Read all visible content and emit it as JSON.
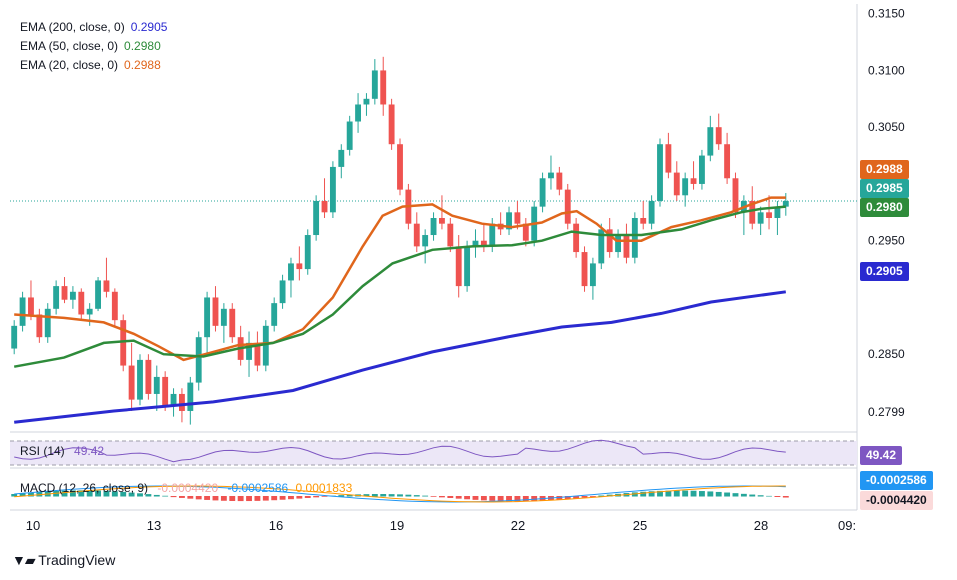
{
  "colors": {
    "ema200": "#2a2ad0",
    "ema50": "#2e8b3a",
    "ema20": "#e0661c",
    "up": "#26a69a",
    "down": "#ef5350",
    "rsi": "#7e57c2",
    "macd_line": "#2196f3",
    "signal_line": "#ff9800"
  },
  "legend": {
    "ema200": {
      "label": "EMA (200, close, 0)",
      "value": "0.2905"
    },
    "ema50": {
      "label": "EMA (50, close, 0)",
      "value": "0.2980"
    },
    "ema20": {
      "label": "EMA (20, close, 0)",
      "value": "0.2988"
    }
  },
  "price_pills": {
    "ema20": "0.2988",
    "last": "0.2985",
    "ema50": "0.2980",
    "ema200": "0.2905"
  },
  "rsi": {
    "label": "RSI (14)",
    "value": "49.42",
    "pill": "49.42"
  },
  "macd": {
    "label": "MACD (12, 26, close, 9)",
    "hist": "-0.0004420",
    "macd": "-0.0002586",
    "signal": "0.0001833",
    "pill_macd": "-0.0002586",
    "pill_hist": "-0.0004420"
  },
  "footer": {
    "brand": "TradingView"
  },
  "chart_data": {
    "type": "candlestick",
    "y_ticks": [
      "0.3150",
      "0.3100",
      "0.3050",
      "0.2950",
      "0.2850",
      "0.2799"
    ],
    "x_ticks": [
      "10",
      "13",
      "16",
      "19",
      "22",
      "25",
      "28",
      "09:"
    ],
    "ylim": [
      0.2785,
      0.3155
    ],
    "series": [
      {
        "name": "EMA (20, close, 0)",
        "points": [
          [
            0,
            0.2885
          ],
          [
            10,
            0.2882
          ],
          [
            18,
            0.2878
          ],
          [
            24,
            0.2868
          ],
          [
            29,
            0.2857
          ],
          [
            34,
            0.2845
          ],
          [
            40,
            0.2852
          ],
          [
            45,
            0.2858
          ],
          [
            52,
            0.286
          ],
          [
            58,
            0.2872
          ],
          [
            64,
            0.29
          ],
          [
            70,
            0.2945
          ],
          [
            74,
            0.2972
          ],
          [
            78,
            0.298
          ],
          [
            84,
            0.2982
          ],
          [
            88,
            0.2972
          ],
          [
            94,
            0.2965
          ],
          [
            100,
            0.2962
          ],
          [
            106,
            0.2966
          ],
          [
            110,
            0.2974
          ],
          [
            113,
            0.2976
          ],
          [
            117,
            0.2965
          ],
          [
            121,
            0.295
          ],
          [
            126,
            0.295
          ],
          [
            132,
            0.2962
          ],
          [
            138,
            0.2968
          ],
          [
            144,
            0.2975
          ],
          [
            148,
            0.2982
          ],
          [
            152,
            0.2988
          ],
          [
            155,
            0.2988
          ]
        ]
      },
      {
        "name": "EMA (50, close, 0)",
        "points": [
          [
            0,
            0.2839
          ],
          [
            10,
            0.2847
          ],
          [
            18,
            0.286
          ],
          [
            24,
            0.2862
          ],
          [
            30,
            0.285
          ],
          [
            38,
            0.2848
          ],
          [
            45,
            0.2855
          ],
          [
            52,
            0.286
          ],
          [
            58,
            0.2868
          ],
          [
            64,
            0.2885
          ],
          [
            70,
            0.291
          ],
          [
            76,
            0.293
          ],
          [
            84,
            0.2942
          ],
          [
            92,
            0.2945
          ],
          [
            100,
            0.2946
          ],
          [
            106,
            0.295
          ],
          [
            112,
            0.2958
          ],
          [
            118,
            0.2955
          ],
          [
            126,
            0.2955
          ],
          [
            134,
            0.296
          ],
          [
            140,
            0.2968
          ],
          [
            146,
            0.2975
          ],
          [
            150,
            0.2978
          ],
          [
            155,
            0.298
          ]
        ]
      },
      {
        "name": "EMA (200, close, 0)",
        "points": [
          [
            0,
            0.279
          ],
          [
            20,
            0.28
          ],
          [
            40,
            0.2808
          ],
          [
            56,
            0.2818
          ],
          [
            70,
            0.2836
          ],
          [
            84,
            0.2852
          ],
          [
            100,
            0.2866
          ],
          [
            110,
            0.2874
          ],
          [
            120,
            0.2878
          ],
          [
            130,
            0.2886
          ],
          [
            140,
            0.2896
          ],
          [
            150,
            0.2902
          ],
          [
            155,
            0.2905
          ]
        ]
      }
    ],
    "candles_note": "approximate OHLC read from chart",
    "candles": [
      [
        0.2855,
        0.288,
        0.285,
        0.2875
      ],
      [
        0.2875,
        0.2905,
        0.287,
        0.29
      ],
      [
        0.29,
        0.2915,
        0.288,
        0.2885
      ],
      [
        0.2885,
        0.289,
        0.286,
        0.2865
      ],
      [
        0.2865,
        0.2895,
        0.286,
        0.289
      ],
      [
        0.289,
        0.2915,
        0.2885,
        0.291
      ],
      [
        0.291,
        0.2918,
        0.2895,
        0.2898
      ],
      [
        0.2898,
        0.291,
        0.289,
        0.2905
      ],
      [
        0.2905,
        0.2908,
        0.288,
        0.2885
      ],
      [
        0.2885,
        0.2895,
        0.2875,
        0.289
      ],
      [
        0.289,
        0.2918,
        0.2888,
        0.2915
      ],
      [
        0.2915,
        0.2935,
        0.29,
        0.2905
      ],
      [
        0.2905,
        0.2908,
        0.2875,
        0.288
      ],
      [
        0.288,
        0.2885,
        0.2835,
        0.284
      ],
      [
        0.284,
        0.286,
        0.28,
        0.281
      ],
      [
        0.281,
        0.285,
        0.2805,
        0.2845
      ],
      [
        0.2845,
        0.285,
        0.281,
        0.2815
      ],
      [
        0.2815,
        0.284,
        0.28,
        0.283
      ],
      [
        0.283,
        0.2835,
        0.28,
        0.2805
      ],
      [
        0.2805,
        0.282,
        0.2795,
        0.2815
      ],
      [
        0.2815,
        0.282,
        0.279,
        0.28
      ],
      [
        0.28,
        0.283,
        0.2788,
        0.2825
      ],
      [
        0.2825,
        0.287,
        0.2818,
        0.2865
      ],
      [
        0.2865,
        0.2905,
        0.285,
        0.29
      ],
      [
        0.29,
        0.291,
        0.287,
        0.2875
      ],
      [
        0.2875,
        0.2895,
        0.286,
        0.289
      ],
      [
        0.289,
        0.2895,
        0.286,
        0.2865
      ],
      [
        0.2865,
        0.2875,
        0.284,
        0.2845
      ],
      [
        0.2845,
        0.287,
        0.283,
        0.286
      ],
      [
        0.286,
        0.287,
        0.2835,
        0.284
      ],
      [
        0.284,
        0.288,
        0.2835,
        0.2875
      ],
      [
        0.2875,
        0.29,
        0.287,
        0.2895
      ],
      [
        0.2895,
        0.292,
        0.289,
        0.2915
      ],
      [
        0.2915,
        0.2935,
        0.29,
        0.293
      ],
      [
        0.293,
        0.2945,
        0.2915,
        0.2925
      ],
      [
        0.2925,
        0.296,
        0.292,
        0.2955
      ],
      [
        0.2955,
        0.299,
        0.295,
        0.2985
      ],
      [
        0.2985,
        0.3005,
        0.297,
        0.2975
      ],
      [
        0.2975,
        0.302,
        0.297,
        0.3015
      ],
      [
        0.3015,
        0.3035,
        0.3005,
        0.303
      ],
      [
        0.303,
        0.306,
        0.3025,
        0.3055
      ],
      [
        0.3055,
        0.308,
        0.3045,
        0.307
      ],
      [
        0.307,
        0.308,
        0.306,
        0.3075
      ],
      [
        0.3075,
        0.311,
        0.307,
        0.31
      ],
      [
        0.31,
        0.3112,
        0.306,
        0.307
      ],
      [
        0.307,
        0.3075,
        0.303,
        0.3035
      ],
      [
        0.3035,
        0.304,
        0.299,
        0.2995
      ],
      [
        0.2995,
        0.3,
        0.296,
        0.2965
      ],
      [
        0.2965,
        0.2975,
        0.294,
        0.2945
      ],
      [
        0.2945,
        0.296,
        0.293,
        0.2955
      ],
      [
        0.2955,
        0.2975,
        0.295,
        0.297
      ],
      [
        0.297,
        0.299,
        0.296,
        0.2965
      ],
      [
        0.2965,
        0.297,
        0.294,
        0.2945
      ],
      [
        0.2945,
        0.2955,
        0.29,
        0.291
      ],
      [
        0.291,
        0.295,
        0.2905,
        0.2945
      ],
      [
        0.2945,
        0.296,
        0.2935,
        0.295
      ],
      [
        0.295,
        0.2965,
        0.294,
        0.2945
      ],
      [
        0.2945,
        0.297,
        0.294,
        0.2965
      ],
      [
        0.2965,
        0.2975,
        0.2955,
        0.296
      ],
      [
        0.296,
        0.298,
        0.2955,
        0.2975
      ],
      [
        0.2975,
        0.2985,
        0.296,
        0.2965
      ],
      [
        0.2965,
        0.297,
        0.2945,
        0.295
      ],
      [
        0.295,
        0.2985,
        0.2945,
        0.298
      ],
      [
        0.298,
        0.301,
        0.2975,
        0.3005
      ],
      [
        0.3005,
        0.3025,
        0.2995,
        0.301
      ],
      [
        0.301,
        0.3015,
        0.299,
        0.2995
      ],
      [
        0.2995,
        0.3,
        0.296,
        0.2965
      ],
      [
        0.2965,
        0.297,
        0.2935,
        0.294
      ],
      [
        0.294,
        0.2945,
        0.2905,
        0.291
      ],
      [
        0.291,
        0.2935,
        0.2898,
        0.293
      ],
      [
        0.293,
        0.2965,
        0.2925,
        0.296
      ],
      [
        0.296,
        0.297,
        0.2935,
        0.294
      ],
      [
        0.294,
        0.296,
        0.2935,
        0.2955
      ],
      [
        0.2955,
        0.2965,
        0.293,
        0.2935
      ],
      [
        0.2935,
        0.2975,
        0.293,
        0.297
      ],
      [
        0.297,
        0.2985,
        0.296,
        0.2965
      ],
      [
        0.2965,
        0.299,
        0.296,
        0.2985
      ],
      [
        0.2985,
        0.304,
        0.298,
        0.3035
      ],
      [
        0.3035,
        0.3045,
        0.3005,
        0.301
      ],
      [
        0.301,
        0.302,
        0.2985,
        0.299
      ],
      [
        0.299,
        0.301,
        0.298,
        0.3005
      ],
      [
        0.3005,
        0.302,
        0.2995,
        0.3
      ],
      [
        0.3,
        0.303,
        0.2995,
        0.3025
      ],
      [
        0.3025,
        0.306,
        0.302,
        0.305
      ],
      [
        0.305,
        0.3062,
        0.303,
        0.3035
      ],
      [
        0.3035,
        0.3045,
        0.3,
        0.3005
      ],
      [
        0.3005,
        0.301,
        0.297,
        0.2975
      ],
      [
        0.2975,
        0.299,
        0.2955,
        0.2985
      ],
      [
        0.2985,
        0.2998,
        0.296,
        0.2965
      ],
      [
        0.2965,
        0.298,
        0.2955,
        0.2975
      ],
      [
        0.2975,
        0.299,
        0.296,
        0.297
      ],
      [
        0.297,
        0.2985,
        0.2955,
        0.298
      ],
      [
        0.298,
        0.2992,
        0.2972,
        0.2985
      ]
    ],
    "rsi_last": 49.42,
    "macd_values": {
      "macd": -0.0002586,
      "signal": 0.0001833,
      "histogram": -0.000442
    }
  }
}
